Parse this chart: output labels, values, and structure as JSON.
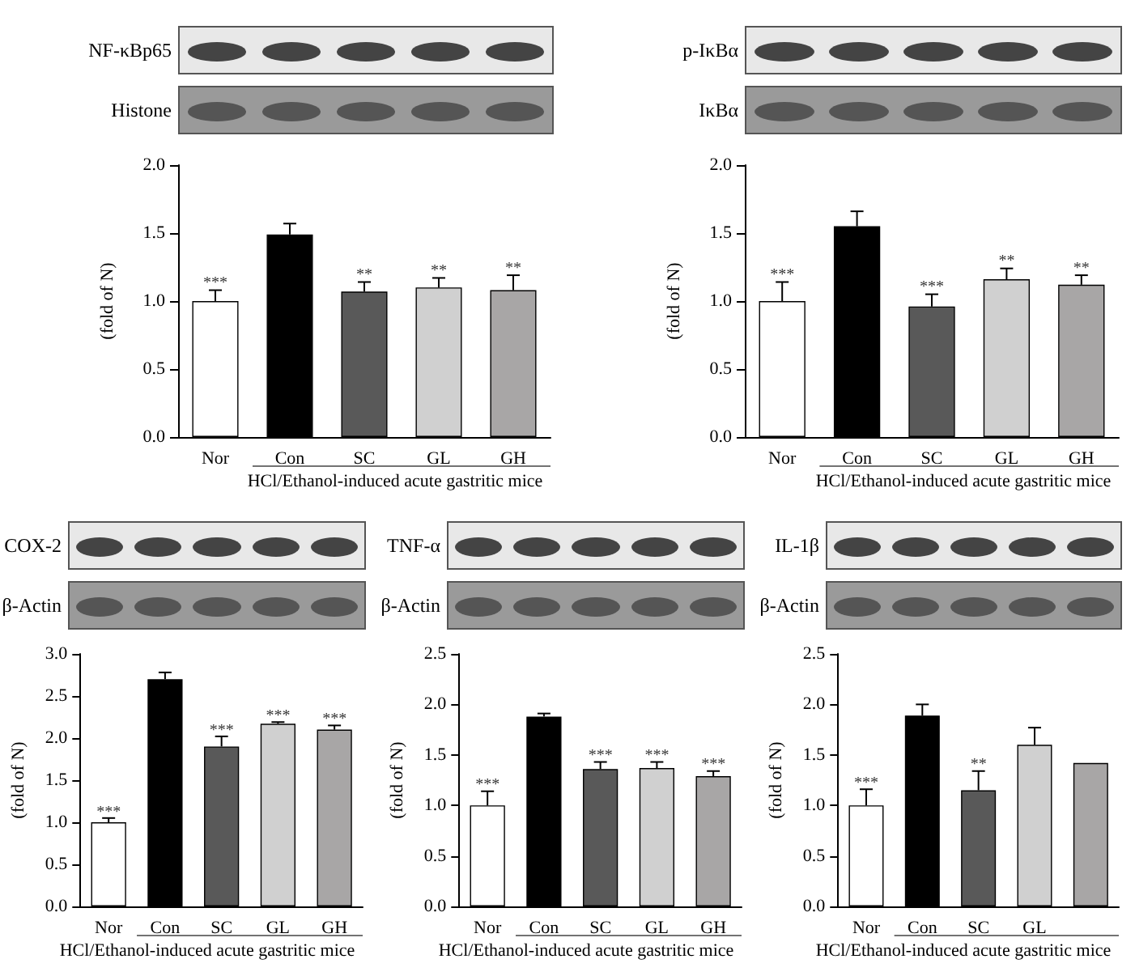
{
  "chart_data": [
    {
      "type": "bar",
      "ylabel": "(fold of N)",
      "xlabel": "HCl/Ethanol-induced acute gastritic mice",
      "categories": [
        "Nor",
        "Con",
        "SC",
        "GL",
        "GH"
      ],
      "colors": [
        "#ffffff",
        "#000000",
        "#595959",
        "#d0d0d0",
        "#a8a6a6"
      ],
      "values": [
        1.0,
        1.49,
        1.07,
        1.1,
        1.08
      ],
      "errors": [
        [
          1.0,
          1.08
        ],
        [
          1.49,
          1.57
        ],
        [
          1.07,
          1.14
        ],
        [
          1.1,
          1.17
        ],
        [
          1.08,
          1.19
        ]
      ],
      "ylim": [
        0,
        2
      ],
      "yticks": [
        {
          "value": 0,
          "label": "0.0"
        },
        {
          "value": 0.5,
          "label": "0.5"
        },
        {
          "value": 1,
          "label": "1.0"
        },
        {
          "value": 1.5,
          "label": "1.5"
        },
        {
          "value": 2,
          "label": "2.0"
        }
      ],
      "annotations": [
        "NF-κBp65",
        "Histone",
        {
          "text": "***",
          "x": "Nor",
          "y": 1.13
        },
        {
          "text": "**",
          "x": "SC",
          "y": 1.19
        },
        {
          "text": "**",
          "x": "GL",
          "y": 1.22
        },
        {
          "text": "**",
          "x": "GH",
          "y": 1.24
        }
      ]
    },
    {
      "type": "bar",
      "ylabel": "(fold of N)",
      "xlabel": "HCl/Ethanol-induced acute gastritic mice",
      "categories": [
        "Nor",
        "Con",
        "SC",
        "GL",
        "GH"
      ],
      "colors": [
        "#ffffff",
        "#000000",
        "#595959",
        "#d0d0d0",
        "#a8a6a6"
      ],
      "values": [
        1.0,
        1.55,
        0.96,
        1.16,
        1.12
      ],
      "errors": [
        [
          1.0,
          1.14
        ],
        [
          1.55,
          1.66
        ],
        [
          0.96,
          1.05
        ],
        [
          1.16,
          1.24
        ],
        [
          1.12,
          1.19
        ]
      ],
      "ylim": [
        0,
        2
      ],
      "yticks": [
        {
          "value": 0,
          "label": "0.0"
        },
        {
          "value": 0.5,
          "label": "0.5"
        },
        {
          "value": 1,
          "label": "1.0"
        },
        {
          "value": 1.5,
          "label": "1.5"
        },
        {
          "value": 2,
          "label": "2.0"
        }
      ],
      "annotations": [
        "p-IκBα",
        "IκBα",
        {
          "text": "***",
          "x": "Nor",
          "y": 1.19
        },
        {
          "text": "***",
          "x": "SC",
          "y": 1.1
        },
        {
          "text": "**",
          "x": "GL",
          "y": 1.29
        },
        {
          "text": "**",
          "x": "GH",
          "y": 1.24
        }
      ]
    },
    {
      "type": "bar",
      "ylabel": "(fold of N)",
      "xlabel": "HCl/Ethanol-induced acute gastritic mice",
      "categories": [
        "Nor",
        "Con",
        "SC",
        "GL",
        "GH"
      ],
      "colors": [
        "#ffffff",
        "#000000",
        "#595959",
        "#d0d0d0",
        "#a8a6a6"
      ],
      "values": [
        1.0,
        2.7,
        1.9,
        2.17,
        2.1
      ],
      "errors": [
        [
          1.0,
          1.05
        ],
        [
          2.7,
          2.78
        ],
        [
          1.9,
          2.02
        ],
        [
          2.17,
          2.19
        ],
        [
          2.1,
          2.15
        ]
      ],
      "ylim": [
        0,
        3
      ],
      "yticks": [
        {
          "value": 0,
          "label": "0.0"
        },
        {
          "value": 0.5,
          "label": "0.5"
        },
        {
          "value": 1,
          "label": "1.0"
        },
        {
          "value": 1.5,
          "label": "1.5"
        },
        {
          "value": 2,
          "label": "2.0"
        },
        {
          "value": 2.5,
          "label": "2.5"
        },
        {
          "value": 3,
          "label": "3.0"
        }
      ],
      "annotations": [
        "COX-2",
        "β-Actin",
        {
          "text": "***",
          "x": "Nor",
          "y": 1.12
        },
        {
          "text": "***",
          "x": "SC",
          "y": 2.09
        },
        {
          "text": "***",
          "x": "GL",
          "y": 2.26
        },
        {
          "text": "***",
          "x": "GH",
          "y": 2.22
        }
      ]
    },
    {
      "type": "bar",
      "ylabel": "(fold of N)",
      "xlabel": "HCl/Ethanol-induced acute gastritic mice",
      "categories": [
        "Nor",
        "Con",
        "SC",
        "GL",
        "GH"
      ],
      "colors": [
        "#ffffff",
        "#000000",
        "#595959",
        "#d0d0d0",
        "#a8a6a6"
      ],
      "values": [
        1.0,
        1.88,
        1.36,
        1.37,
        1.29
      ],
      "errors": [
        [
          1.0,
          1.14
        ],
        [
          1.88,
          1.91
        ],
        [
          1.36,
          1.43
        ],
        [
          1.37,
          1.43
        ],
        [
          1.29,
          1.34
        ]
      ],
      "ylim": [
        0,
        2.5
      ],
      "yticks": [
        {
          "value": 0,
          "label": "0.0"
        },
        {
          "value": 0.5,
          "label": "0.5"
        },
        {
          "value": 1,
          "label": "1.0"
        },
        {
          "value": 1.5,
          "label": "1.5"
        },
        {
          "value": 2,
          "label": "2.0"
        },
        {
          "value": 2.5,
          "label": "2.5"
        }
      ],
      "annotations": [
        "TNF-α",
        "β-Actin",
        {
          "text": "***",
          "x": "Nor",
          "y": 1.2
        },
        {
          "text": "***",
          "x": "SC",
          "y": 1.49
        },
        {
          "text": "***",
          "x": "GL",
          "y": 1.49
        },
        {
          "text": "***",
          "x": "GH",
          "y": 1.4
        }
      ]
    },
    {
      "type": "bar",
      "ylabel": "(fold of N)",
      "xlabel": "HCl/Ethanol-induced acute gastritic mice",
      "categories": [
        "Nor",
        "Con",
        "SC",
        "GL",
        null
      ],
      "colors": [
        "#ffffff",
        "#000000",
        "#595959",
        "#d0d0d0",
        "#a8a6a6"
      ],
      "values": [
        1.0,
        1.89,
        1.15,
        1.6,
        1.42
      ],
      "errors": [
        [
          1.0,
          1.16
        ],
        [
          1.89,
          2.0
        ],
        [
          1.15,
          1.34
        ],
        [
          1.6,
          1.77
        ],
        null
      ],
      "ylim": [
        0,
        2.5
      ],
      "yticks": [
        {
          "value": 0,
          "label": "0.0"
        },
        {
          "value": 0.5,
          "label": "0.5"
        },
        {
          "value": 1,
          "label": "1.0"
        },
        {
          "value": 1.5,
          "label": "1.5"
        },
        {
          "value": 2,
          "label": "2.0"
        },
        {
          "value": 2.5,
          "label": "2.5"
        }
      ],
      "annotations": [
        "IL-1β",
        "β-Actin",
        {
          "text": "***",
          "x": "Nor",
          "y": 1.22
        },
        {
          "text": "**",
          "x": "SC",
          "y": 1.4
        }
      ]
    }
  ]
}
